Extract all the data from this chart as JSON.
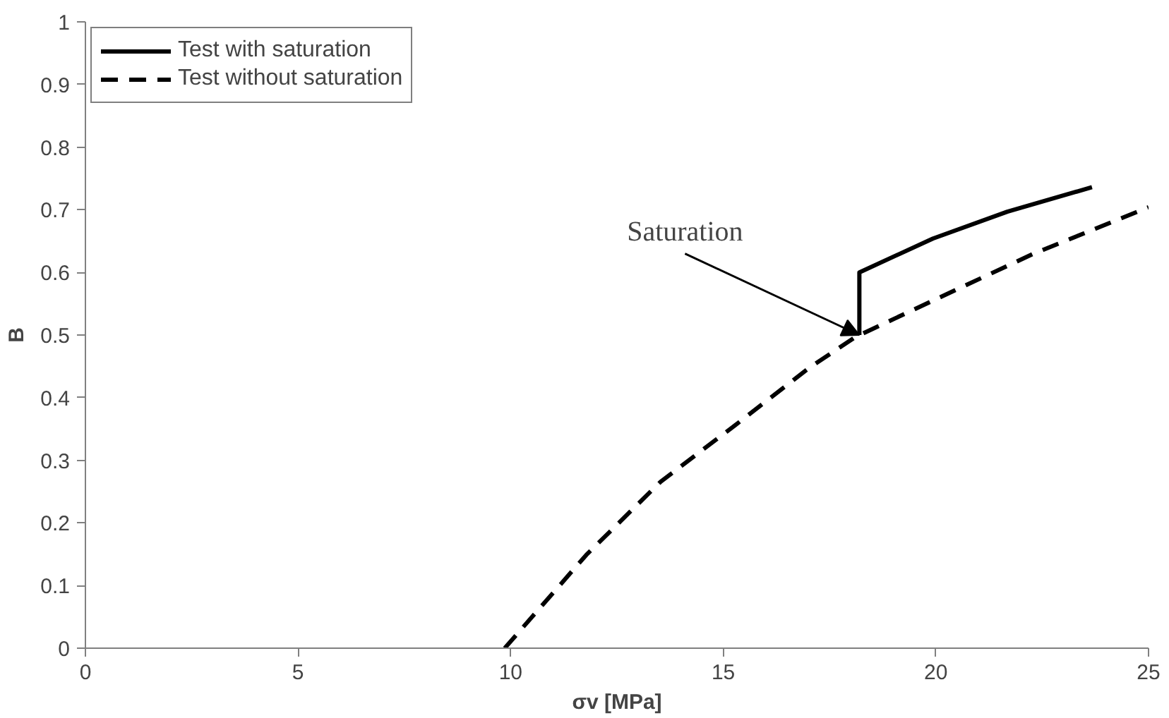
{
  "chart_data": {
    "type": "line",
    "xlabel": "σv [MPa]",
    "ylabel": "B",
    "xlim": [
      0,
      25
    ],
    "ylim": [
      0,
      1
    ],
    "xticks": [
      0,
      5,
      10,
      15,
      20,
      25
    ],
    "yticks": [
      0,
      0.1,
      0.2,
      0.3,
      0.4,
      0.5,
      0.6,
      0.7,
      0.8,
      0.9,
      1
    ],
    "grid": false,
    "legend": "top left",
    "marker": "none",
    "series": [
      {
        "name": "Test with saturation",
        "color": "#000000",
        "line_style": "solid",
        "x": [
          18.2,
          18.2,
          19.93,
          21.68,
          23.67
        ],
        "values": [
          0.5,
          0.6,
          0.654,
          0.697,
          0.736
        ]
      },
      {
        "name": "Test without saturation",
        "color": "#000000",
        "line_style": "dashed",
        "x": [
          9.86,
          11.78,
          13.53,
          15.28,
          17.03,
          18.11,
          19.93,
          22.27,
          25
        ],
        "values": [
          0,
          0.149,
          0.266,
          0.356,
          0.448,
          0.497,
          0.555,
          0.629,
          0.704
        ]
      }
    ],
    "annotations": [
      {
        "text": "Saturation",
        "x": 18.2,
        "y": 0.5
      }
    ]
  }
}
